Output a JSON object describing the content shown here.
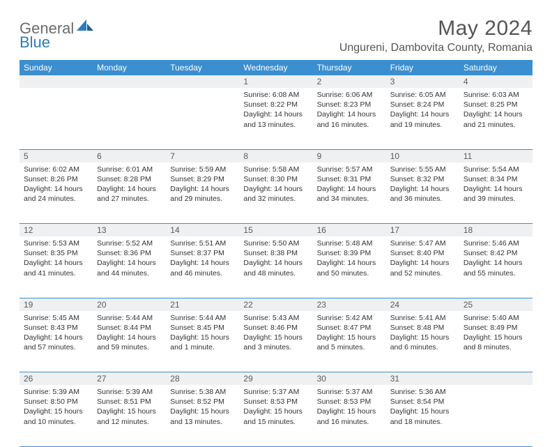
{
  "brand": {
    "part1": "General",
    "part2": "Blue"
  },
  "title": "May 2024",
  "location": "Ungureni, Dambovita County, Romania",
  "colors": {
    "header_bg": "#3b8ecf",
    "header_text": "#ffffff",
    "daynum_bg": "#eef0f2",
    "text": "#333333",
    "title_text": "#555555",
    "border": "#3b8ecf"
  },
  "weekdays": [
    "Sunday",
    "Monday",
    "Tuesday",
    "Wednesday",
    "Thursday",
    "Friday",
    "Saturday"
  ],
  "weeks": [
    {
      "nums": [
        "",
        "",
        "",
        "1",
        "2",
        "3",
        "4"
      ],
      "cells": [
        {},
        {},
        {},
        {
          "sunrise": "Sunrise: 6:08 AM",
          "sunset": "Sunset: 8:22 PM",
          "day1": "Daylight: 14 hours",
          "day2": "and 13 minutes."
        },
        {
          "sunrise": "Sunrise: 6:06 AM",
          "sunset": "Sunset: 8:23 PM",
          "day1": "Daylight: 14 hours",
          "day2": "and 16 minutes."
        },
        {
          "sunrise": "Sunrise: 6:05 AM",
          "sunset": "Sunset: 8:24 PM",
          "day1": "Daylight: 14 hours",
          "day2": "and 19 minutes."
        },
        {
          "sunrise": "Sunrise: 6:03 AM",
          "sunset": "Sunset: 8:25 PM",
          "day1": "Daylight: 14 hours",
          "day2": "and 21 minutes."
        }
      ]
    },
    {
      "nums": [
        "5",
        "6",
        "7",
        "8",
        "9",
        "10",
        "11"
      ],
      "cells": [
        {
          "sunrise": "Sunrise: 6:02 AM",
          "sunset": "Sunset: 8:26 PM",
          "day1": "Daylight: 14 hours",
          "day2": "and 24 minutes."
        },
        {
          "sunrise": "Sunrise: 6:01 AM",
          "sunset": "Sunset: 8:28 PM",
          "day1": "Daylight: 14 hours",
          "day2": "and 27 minutes."
        },
        {
          "sunrise": "Sunrise: 5:59 AM",
          "sunset": "Sunset: 8:29 PM",
          "day1": "Daylight: 14 hours",
          "day2": "and 29 minutes."
        },
        {
          "sunrise": "Sunrise: 5:58 AM",
          "sunset": "Sunset: 8:30 PM",
          "day1": "Daylight: 14 hours",
          "day2": "and 32 minutes."
        },
        {
          "sunrise": "Sunrise: 5:57 AM",
          "sunset": "Sunset: 8:31 PM",
          "day1": "Daylight: 14 hours",
          "day2": "and 34 minutes."
        },
        {
          "sunrise": "Sunrise: 5:55 AM",
          "sunset": "Sunset: 8:32 PM",
          "day1": "Daylight: 14 hours",
          "day2": "and 36 minutes."
        },
        {
          "sunrise": "Sunrise: 5:54 AM",
          "sunset": "Sunset: 8:34 PM",
          "day1": "Daylight: 14 hours",
          "day2": "and 39 minutes."
        }
      ]
    },
    {
      "nums": [
        "12",
        "13",
        "14",
        "15",
        "16",
        "17",
        "18"
      ],
      "cells": [
        {
          "sunrise": "Sunrise: 5:53 AM",
          "sunset": "Sunset: 8:35 PM",
          "day1": "Daylight: 14 hours",
          "day2": "and 41 minutes."
        },
        {
          "sunrise": "Sunrise: 5:52 AM",
          "sunset": "Sunset: 8:36 PM",
          "day1": "Daylight: 14 hours",
          "day2": "and 44 minutes."
        },
        {
          "sunrise": "Sunrise: 5:51 AM",
          "sunset": "Sunset: 8:37 PM",
          "day1": "Daylight: 14 hours",
          "day2": "and 46 minutes."
        },
        {
          "sunrise": "Sunrise: 5:50 AM",
          "sunset": "Sunset: 8:38 PM",
          "day1": "Daylight: 14 hours",
          "day2": "and 48 minutes."
        },
        {
          "sunrise": "Sunrise: 5:48 AM",
          "sunset": "Sunset: 8:39 PM",
          "day1": "Daylight: 14 hours",
          "day2": "and 50 minutes."
        },
        {
          "sunrise": "Sunrise: 5:47 AM",
          "sunset": "Sunset: 8:40 PM",
          "day1": "Daylight: 14 hours",
          "day2": "and 52 minutes."
        },
        {
          "sunrise": "Sunrise: 5:46 AM",
          "sunset": "Sunset: 8:42 PM",
          "day1": "Daylight: 14 hours",
          "day2": "and 55 minutes."
        }
      ]
    },
    {
      "nums": [
        "19",
        "20",
        "21",
        "22",
        "23",
        "24",
        "25"
      ],
      "cells": [
        {
          "sunrise": "Sunrise: 5:45 AM",
          "sunset": "Sunset: 8:43 PM",
          "day1": "Daylight: 14 hours",
          "day2": "and 57 minutes."
        },
        {
          "sunrise": "Sunrise: 5:44 AM",
          "sunset": "Sunset: 8:44 PM",
          "day1": "Daylight: 14 hours",
          "day2": "and 59 minutes."
        },
        {
          "sunrise": "Sunrise: 5:44 AM",
          "sunset": "Sunset: 8:45 PM",
          "day1": "Daylight: 15 hours",
          "day2": "and 1 minute."
        },
        {
          "sunrise": "Sunrise: 5:43 AM",
          "sunset": "Sunset: 8:46 PM",
          "day1": "Daylight: 15 hours",
          "day2": "and 3 minutes."
        },
        {
          "sunrise": "Sunrise: 5:42 AM",
          "sunset": "Sunset: 8:47 PM",
          "day1": "Daylight: 15 hours",
          "day2": "and 5 minutes."
        },
        {
          "sunrise": "Sunrise: 5:41 AM",
          "sunset": "Sunset: 8:48 PM",
          "day1": "Daylight: 15 hours",
          "day2": "and 6 minutes."
        },
        {
          "sunrise": "Sunrise: 5:40 AM",
          "sunset": "Sunset: 8:49 PM",
          "day1": "Daylight: 15 hours",
          "day2": "and 8 minutes."
        }
      ]
    },
    {
      "nums": [
        "26",
        "27",
        "28",
        "29",
        "30",
        "31",
        ""
      ],
      "cells": [
        {
          "sunrise": "Sunrise: 5:39 AM",
          "sunset": "Sunset: 8:50 PM",
          "day1": "Daylight: 15 hours",
          "day2": "and 10 minutes."
        },
        {
          "sunrise": "Sunrise: 5:39 AM",
          "sunset": "Sunset: 8:51 PM",
          "day1": "Daylight: 15 hours",
          "day2": "and 12 minutes."
        },
        {
          "sunrise": "Sunrise: 5:38 AM",
          "sunset": "Sunset: 8:52 PM",
          "day1": "Daylight: 15 hours",
          "day2": "and 13 minutes."
        },
        {
          "sunrise": "Sunrise: 5:37 AM",
          "sunset": "Sunset: 8:53 PM",
          "day1": "Daylight: 15 hours",
          "day2": "and 15 minutes."
        },
        {
          "sunrise": "Sunrise: 5:37 AM",
          "sunset": "Sunset: 8:53 PM",
          "day1": "Daylight: 15 hours",
          "day2": "and 16 minutes."
        },
        {
          "sunrise": "Sunrise: 5:36 AM",
          "sunset": "Sunset: 8:54 PM",
          "day1": "Daylight: 15 hours",
          "day2": "and 18 minutes."
        },
        {}
      ]
    }
  ]
}
